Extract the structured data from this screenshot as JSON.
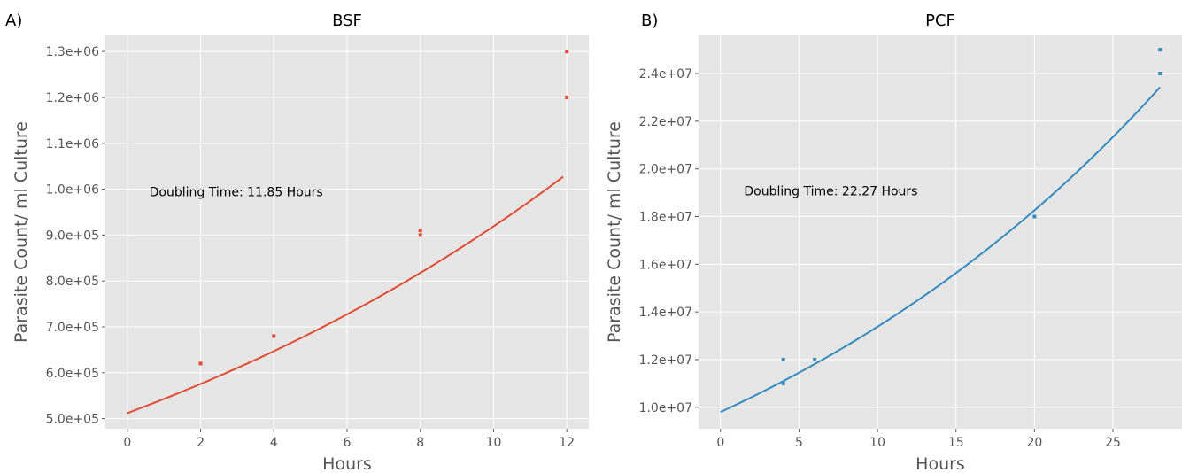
{
  "chart_data": [
    {
      "type": "scatter",
      "panel_label": "A)",
      "title": "BSF",
      "xlabel": "Hours",
      "ylabel": "Parasite Count/ ml Culture",
      "xlim": [
        -0.6,
        12.6
      ],
      "ylim": [
        478000,
        1335000
      ],
      "xticks": [
        0,
        2,
        4,
        6,
        8,
        10,
        12
      ],
      "xtick_labels": [
        "0",
        "2",
        "4",
        "6",
        "8",
        "10",
        "12"
      ],
      "yticks": [
        500000,
        600000,
        700000,
        800000,
        900000,
        1000000,
        1100000,
        1200000,
        1300000
      ],
      "ytick_labels": [
        "5.0e+05",
        "6.0e+05",
        "7.0e+05",
        "8.0e+05",
        "9.0e+05",
        "1.0e+06",
        "1.1e+06",
        "1.2e+06",
        "1.3e+06"
      ],
      "grid": true,
      "color": "#e24a33",
      "points": [
        {
          "x": 2,
          "y": 620000
        },
        {
          "x": 4,
          "y": 680000
        },
        {
          "x": 8,
          "y": 900000
        },
        {
          "x": 8,
          "y": 910000
        },
        {
          "x": 12,
          "y": 1200000
        },
        {
          "x": 12,
          "y": 1300000
        }
      ],
      "fit": {
        "type": "exponential",
        "y0": 512000,
        "doubling_time": 11.85,
        "x_range": [
          0,
          11.9
        ]
      },
      "annotation": "Doubling Time: 11.85 Hours",
      "annotation_pos": {
        "x": 0.6,
        "y": 985000
      }
    },
    {
      "type": "scatter",
      "panel_label": "B)",
      "title": "PCF",
      "xlabel": "Hours",
      "ylabel": "Parasite Count/ ml Culture",
      "xlim": [
        -1.4,
        29.4
      ],
      "ylim": [
        9100000,
        25600000
      ],
      "xticks": [
        0,
        5,
        10,
        15,
        20,
        25
      ],
      "xtick_labels": [
        "0",
        "5",
        "10",
        "15",
        "20",
        "25"
      ],
      "yticks": [
        10000000,
        12000000,
        14000000,
        16000000,
        18000000,
        20000000,
        22000000,
        24000000
      ],
      "ytick_labels": [
        "1.0e+07",
        "1.2e+07",
        "1.4e+07",
        "1.6e+07",
        "1.8e+07",
        "2.0e+07",
        "2.2e+07",
        "2.4e+07"
      ],
      "grid": true,
      "color": "#348abd",
      "points": [
        {
          "x": 4,
          "y": 11000000
        },
        {
          "x": 4,
          "y": 12000000
        },
        {
          "x": 6,
          "y": 12000000
        },
        {
          "x": 20,
          "y": 18000000
        },
        {
          "x": 28,
          "y": 24000000
        },
        {
          "x": 28,
          "y": 25000000
        }
      ],
      "fit": {
        "type": "exponential",
        "y0": 9800000,
        "doubling_time": 22.27,
        "x_range": [
          0,
          28
        ]
      },
      "annotation": "Doubling Time: 22.27 Hours",
      "annotation_pos": {
        "x": 1.5,
        "y": 18900000
      }
    }
  ]
}
